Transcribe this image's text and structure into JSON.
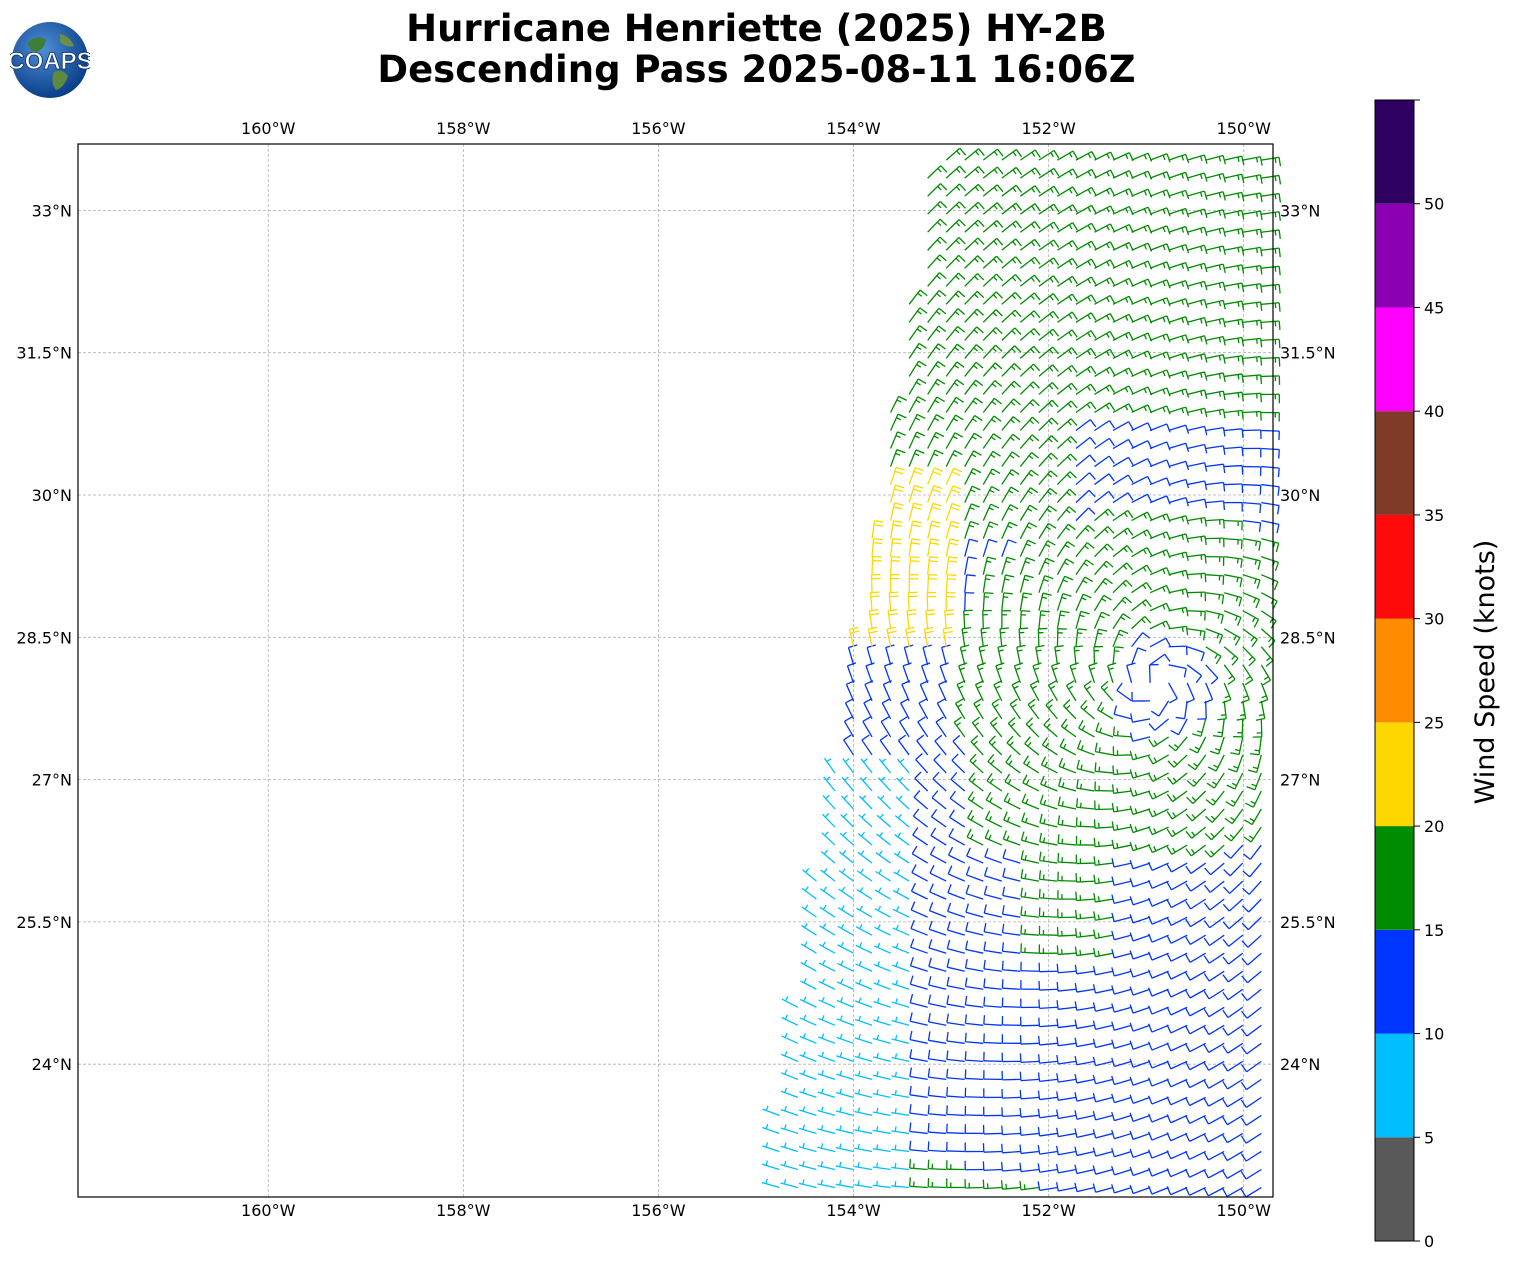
{
  "title": {
    "line1": "Hurricane Henriette (2025) HY-2B",
    "line2": "Descending Pass 2025-08-11 16:06Z"
  },
  "logo": {
    "text": "COAPS",
    "icon": "globe-logo-icon"
  },
  "map": {
    "lon_range": [
      -161.95,
      -149.7
    ],
    "lat_range": [
      22.6,
      33.7
    ],
    "lon_ticks": [
      "160°W",
      "158°W",
      "156°W",
      "154°W",
      "152°W",
      "150°W"
    ],
    "lat_ticks": [
      "33°N",
      "31.5°N",
      "30°N",
      "28.5°N",
      "27°N",
      "25.5°N",
      "24°N"
    ],
    "grid": true,
    "hurricane_center": {
      "lon": -150.9,
      "lat": 28.0
    }
  },
  "colorbar": {
    "label": "Wind Speed (knots)",
    "ticks": [
      "0",
      "5",
      "10",
      "15",
      "20",
      "25",
      "30",
      "35",
      "40",
      "45",
      "50"
    ],
    "range": [
      0,
      55
    ],
    "bins": [
      {
        "min": 0,
        "max": 5,
        "color": "#595959"
      },
      {
        "min": 5,
        "max": 10,
        "color": "#00bfff"
      },
      {
        "min": 10,
        "max": 15,
        "color": "#0035ff"
      },
      {
        "min": 15,
        "max": 20,
        "color": "#008c00"
      },
      {
        "min": 20,
        "max": 25,
        "color": "#ffd700"
      },
      {
        "min": 25,
        "max": 30,
        "color": "#ff8c00"
      },
      {
        "min": 30,
        "max": 35,
        "color": "#ff0a0a"
      },
      {
        "min": 35,
        "max": 40,
        "color": "#7f3a28"
      },
      {
        "min": 40,
        "max": 45,
        "color": "#ff00ff"
      },
      {
        "min": 45,
        "max": 50,
        "color": "#8b00b3"
      },
      {
        "min": 50,
        "max": 55,
        "color": "#2e0060"
      }
    ]
  }
}
